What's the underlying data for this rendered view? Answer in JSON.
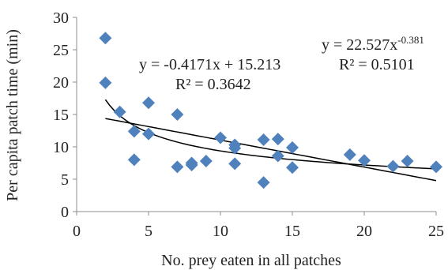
{
  "chart_data": {
    "type": "scatter",
    "title": "",
    "xlabel": "No. prey eaten in all patches",
    "ylabel": "Per capita patch time (min)",
    "xlim": [
      0,
      25
    ],
    "ylim": [
      0,
      30
    ],
    "xticks": [
      0,
      5,
      10,
      15,
      20,
      25
    ],
    "yticks": [
      0,
      5,
      10,
      15,
      20,
      25,
      30
    ],
    "grid": false,
    "marker_color": "#4F81BD",
    "trendline_color": "#000000",
    "points": [
      {
        "x": 2,
        "y": 26.8
      },
      {
        "x": 2,
        "y": 19.9
      },
      {
        "x": 3,
        "y": 15.4
      },
      {
        "x": 4,
        "y": 12.4
      },
      {
        "x": 4,
        "y": 8.0
      },
      {
        "x": 5,
        "y": 16.8
      },
      {
        "x": 5,
        "y": 12.0
      },
      {
        "x": 7,
        "y": 15.0
      },
      {
        "x": 7,
        "y": 6.9
      },
      {
        "x": 8,
        "y": 7.5
      },
      {
        "x": 8,
        "y": 7.2
      },
      {
        "x": 9,
        "y": 7.8
      },
      {
        "x": 10,
        "y": 11.4
      },
      {
        "x": 11,
        "y": 10.3
      },
      {
        "x": 11,
        "y": 9.8
      },
      {
        "x": 11,
        "y": 7.4
      },
      {
        "x": 13,
        "y": 11.1
      },
      {
        "x": 13,
        "y": 4.5
      },
      {
        "x": 14,
        "y": 11.2
      },
      {
        "x": 14,
        "y": 8.6
      },
      {
        "x": 15,
        "y": 9.9
      },
      {
        "x": 15,
        "y": 6.8
      },
      {
        "x": 19,
        "y": 8.8
      },
      {
        "x": 20,
        "y": 7.9
      },
      {
        "x": 22,
        "y": 7.0
      },
      {
        "x": 23,
        "y": 7.8
      },
      {
        "x": 25,
        "y": 6.9
      }
    ],
    "trendlines": [
      {
        "type": "linear",
        "slope": -0.4171,
        "intercept": 15.213,
        "x_range": [
          2,
          25
        ]
      },
      {
        "type": "power",
        "coefficient": 22.527,
        "exponent": -0.381,
        "x_range": [
          2,
          25
        ]
      }
    ],
    "annotations": {
      "linear_eq": "y = -0.4171x + 15.213",
      "linear_r2": "R² = 0.3642",
      "power_eq_base": "y = 22.527x",
      "power_eq_exp": "-0.381",
      "power_r2": "R² = 0.5101"
    }
  }
}
